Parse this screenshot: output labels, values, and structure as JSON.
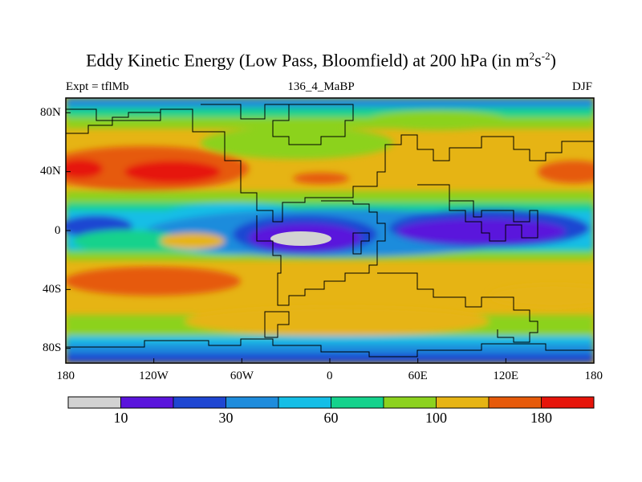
{
  "title": {
    "main": "Eddy Kinetic Energy (Low Pass, Bloomfield) at 200 hPa (in m",
    "sup1": "2",
    "mid": "s",
    "sup2": "-2",
    "end": ")"
  },
  "subtitle": {
    "left": "Expt = tflMb",
    "center": "136_4_MaBP",
    "right": "DJF"
  },
  "map": {
    "y_axis_labels": [
      "80N",
      "40N",
      "0",
      "40S",
      "80S"
    ],
    "x_axis_labels": [
      "180",
      "120W",
      "60W",
      "0",
      "60E",
      "120E",
      "180"
    ],
    "x_axis_lon": [
      -180,
      -120,
      -60,
      0,
      60,
      120,
      180
    ],
    "y_axis_lat": [
      80,
      40,
      0,
      -40,
      -80
    ],
    "lon_range": [
      -180,
      180
    ],
    "lat_range": [
      -90,
      90
    ]
  },
  "colorbar": {
    "colors": [
      "#d2d2d2",
      "#5a14dc",
      "#1e46d2",
      "#1e8cdc",
      "#14bee6",
      "#14d28c",
      "#8cd21e",
      "#e6b414",
      "#e65a0a",
      "#e6140a"
    ],
    "labels": [
      "10",
      "30",
      "60",
      "100",
      "180"
    ],
    "label_boundary_index": [
      1,
      3,
      5,
      7,
      9
    ]
  },
  "colors": {
    "background_field": "#e6b414",
    "frame": "#000000",
    "coastline": "#000000"
  }
}
